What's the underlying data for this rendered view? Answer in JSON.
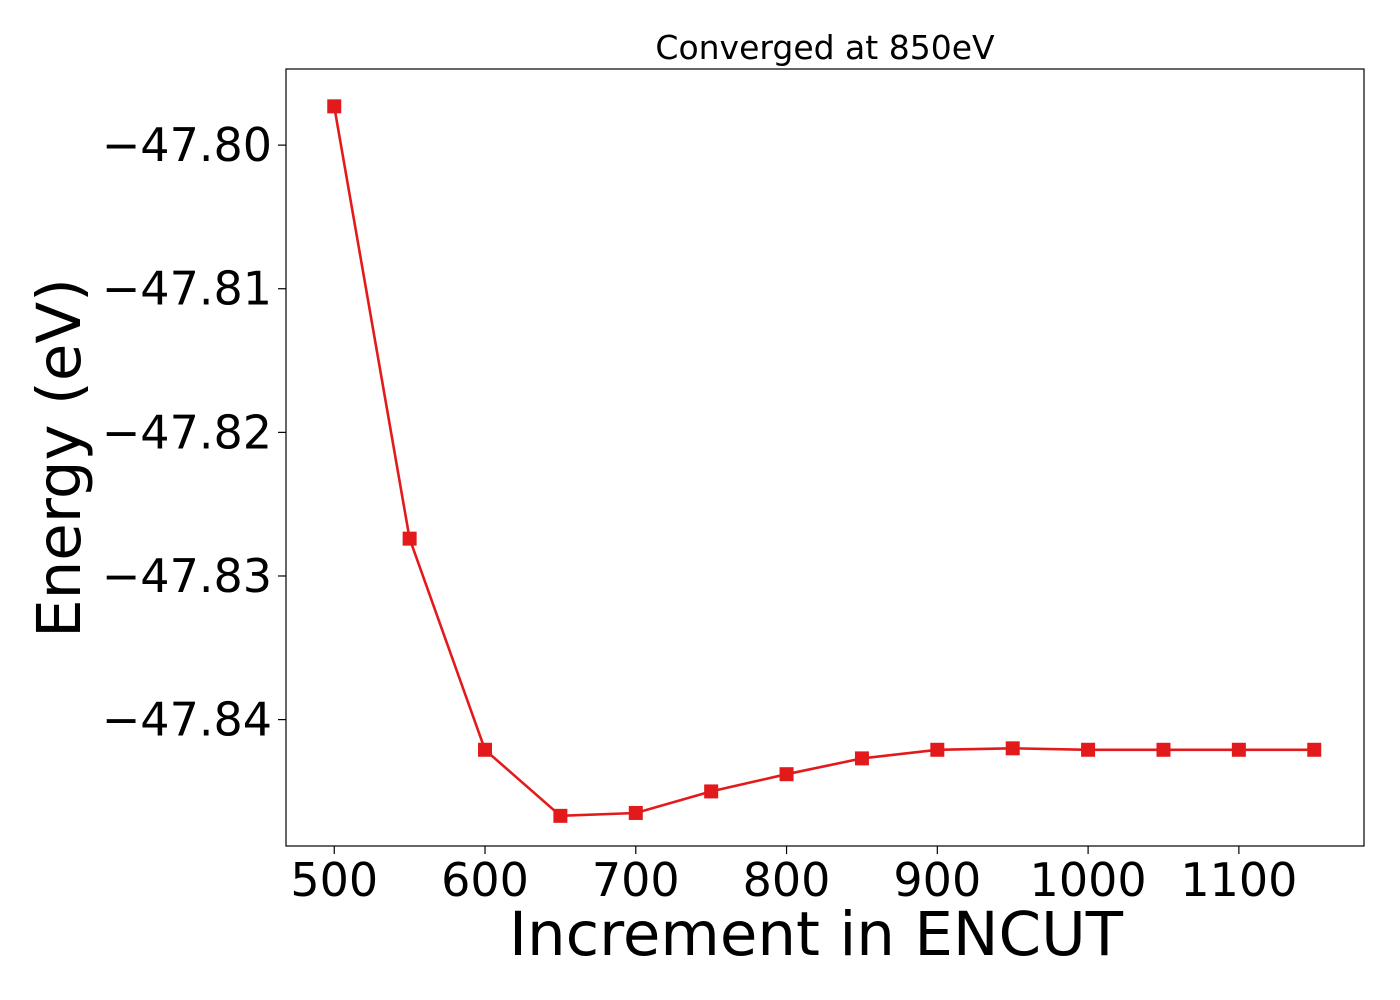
{
  "chart_data": {
    "type": "line",
    "title": "Converged at 850eV",
    "xlabel": "Increment in ENCUT",
    "ylabel": "Energy (eV)",
    "xlim": [
      468,
      1183
    ],
    "ylim": [
      -47.8488,
      -47.7947
    ],
    "x_ticks": [
      500,
      600,
      700,
      800,
      900,
      1000,
      1100
    ],
    "y_ticks": [
      -47.8,
      -47.81,
      -47.82,
      -47.83,
      -47.84
    ],
    "y_tick_labels": [
      "−47.80",
      "−47.81",
      "−47.82",
      "−47.83",
      "−47.84"
    ],
    "grid": false,
    "series": [
      {
        "color": "#e31a1c",
        "marker": "square",
        "x": [
          500,
          550,
          600,
          650,
          700,
          750,
          800,
          850,
          900,
          950,
          1000,
          1050,
          1100,
          1150
        ],
        "y": [
          -47.7973,
          -47.8274,
          -47.8421,
          -47.8467,
          -47.8465,
          -47.845,
          -47.8438,
          -47.8427,
          -47.8421,
          -47.842,
          -47.8421,
          -47.8421,
          -47.8421,
          -47.8421
        ]
      }
    ]
  }
}
